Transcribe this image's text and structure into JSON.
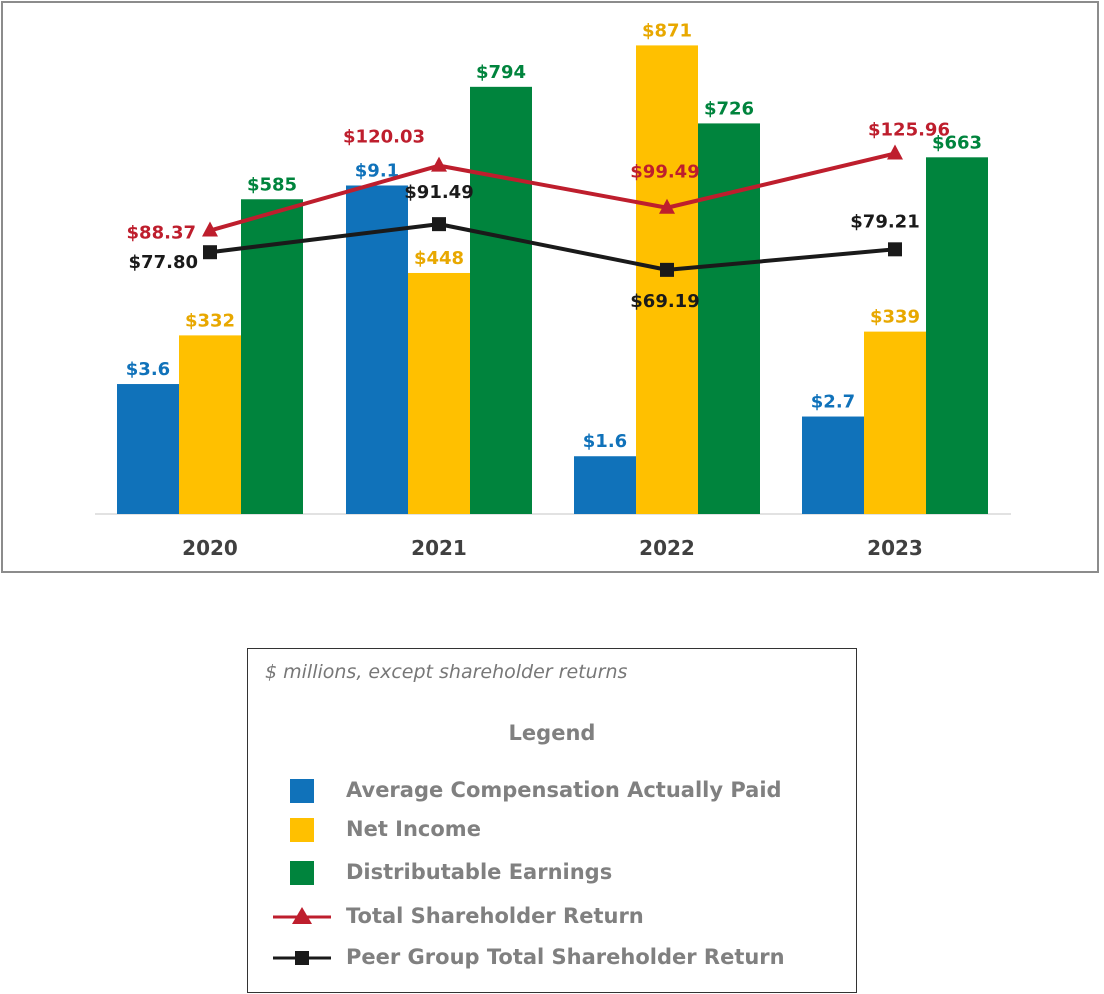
{
  "chart_data": {
    "type": "bar",
    "categories": [
      "2020",
      "2021",
      "2022",
      "2023"
    ],
    "series": [
      {
        "name": "Average Compensation Actually Paid",
        "kind": "bar",
        "color": "#1072BA",
        "values": [
          3.6,
          9.1,
          1.6,
          2.7
        ],
        "labels": [
          "$3.6",
          "$9.1",
          "$1.6",
          "$2.7"
        ]
      },
      {
        "name": "Net Income",
        "kind": "bar",
        "color": "#FFC000",
        "values": [
          332,
          448,
          871,
          339
        ],
        "labels": [
          "$332",
          "$448",
          "$871",
          "$339"
        ]
      },
      {
        "name": "Distributable Earnings",
        "kind": "bar",
        "color": "#00843D",
        "values": [
          585,
          794,
          726,
          663
        ],
        "labels": [
          "$585",
          "$794",
          "$726",
          "$663"
        ]
      },
      {
        "name": "Total Shareholder Return",
        "kind": "line",
        "marker": "triangle",
        "color": "#BE1E2D",
        "values": [
          88.37,
          120.03,
          99.49,
          125.96
        ],
        "labels": [
          "$88.37",
          "$120.03",
          "$99.49",
          "$125.96"
        ]
      },
      {
        "name": "Peer Group Total Shareholder Return",
        "kind": "line",
        "marker": "square",
        "color": "#1a1a1a",
        "values": [
          77.8,
          91.49,
          69.19,
          79.21
        ],
        "labels": [
          "$77.80",
          "$91.49",
          "$69.19",
          "$79.21"
        ]
      }
    ],
    "title": "",
    "xlabel": "",
    "ylabel": "",
    "grid": false,
    "axes_visible": false,
    "legend_position": "below"
  },
  "legend": {
    "note": "$ millions, except shareholder returns",
    "title": "Legend",
    "items": [
      {
        "label": "Average Compensation Actually Paid",
        "symbol": "square",
        "color": "#1072BA"
      },
      {
        "label": "Net Income",
        "symbol": "square",
        "color": "#FFC000"
      },
      {
        "label": "Distributable Earnings",
        "symbol": "square",
        "color": "#00843D"
      },
      {
        "label": "Total Shareholder Return",
        "symbol": "line-triangle",
        "color": "#BE1E2D"
      },
      {
        "label": "Peer Group Total Shareholder Return",
        "symbol": "line-square",
        "color": "#1a1a1a"
      }
    ]
  }
}
